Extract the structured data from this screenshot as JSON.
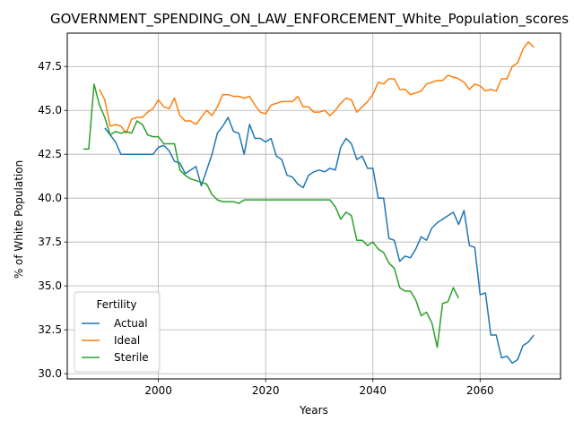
{
  "chart_data": {
    "type": "line",
    "title": "GOVERNMENT_SPENDING_ON_LAW_ENFORCEMENT_White_Population_scores",
    "xlabel": "Years",
    "ylabel": "% of White Population",
    "xlim": [
      1983,
      2075
    ],
    "ylim": [
      29.7,
      49.4
    ],
    "xticks": [
      2000,
      2020,
      2040,
      2060
    ],
    "yticks": [
      30.0,
      32.5,
      35.0,
      37.5,
      40.0,
      42.5,
      45.0,
      47.5
    ],
    "grid": true,
    "legend": {
      "title": "Fertility",
      "position": "lower-left"
    },
    "series": [
      {
        "name": "Actual",
        "color": "#1f77b4",
        "points": [
          [
            1990,
            44.0
          ],
          [
            1991,
            43.6
          ],
          [
            1992,
            43.2
          ],
          [
            1993,
            42.5
          ],
          [
            1994,
            42.5
          ],
          [
            1995,
            42.5
          ],
          [
            1996,
            42.5
          ],
          [
            1997,
            42.5
          ],
          [
            1998,
            42.5
          ],
          [
            1999,
            42.5
          ],
          [
            2000,
            42.9
          ],
          [
            2001,
            43.0
          ],
          [
            2002,
            42.7
          ],
          [
            2003,
            42.1
          ],
          [
            2004,
            42.0
          ],
          [
            2005,
            41.4
          ],
          [
            2006,
            41.6
          ],
          [
            2007,
            41.8
          ],
          [
            2008,
            40.7
          ],
          [
            2009,
            41.6
          ],
          [
            2010,
            42.5
          ],
          [
            2011,
            43.7
          ],
          [
            2012,
            44.1
          ],
          [
            2013,
            44.6
          ],
          [
            2014,
            43.8
          ],
          [
            2015,
            43.7
          ],
          [
            2016,
            42.5
          ],
          [
            2017,
            44.2
          ],
          [
            2018,
            43.4
          ],
          [
            2019,
            43.4
          ],
          [
            2020,
            43.2
          ],
          [
            2021,
            43.4
          ],
          [
            2022,
            42.4
          ],
          [
            2023,
            42.2
          ],
          [
            2024,
            41.3
          ],
          [
            2025,
            41.2
          ],
          [
            2026,
            40.8
          ],
          [
            2027,
            40.6
          ],
          [
            2028,
            41.3
          ],
          [
            2029,
            41.5
          ],
          [
            2030,
            41.6
          ],
          [
            2031,
            41.5
          ],
          [
            2032,
            41.7
          ],
          [
            2033,
            41.6
          ],
          [
            2034,
            42.9
          ],
          [
            2035,
            43.4
          ],
          [
            2036,
            43.1
          ],
          [
            2037,
            42.2
          ],
          [
            2038,
            42.4
          ],
          [
            2039,
            41.7
          ],
          [
            2040,
            41.7
          ],
          [
            2041,
            40.0
          ],
          [
            2042,
            40.0
          ],
          [
            2043,
            37.7
          ],
          [
            2044,
            37.6
          ],
          [
            2045,
            36.4
          ],
          [
            2046,
            36.7
          ],
          [
            2047,
            36.6
          ],
          [
            2048,
            37.1
          ],
          [
            2049,
            37.8
          ],
          [
            2050,
            37.6
          ],
          [
            2051,
            38.3
          ],
          [
            2052,
            38.6
          ],
          [
            2053,
            38.8
          ],
          [
            2054,
            39.0
          ],
          [
            2055,
            39.2
          ],
          [
            2056,
            38.5
          ],
          [
            2057,
            39.3
          ],
          [
            2058,
            37.3
          ],
          [
            2059,
            37.2
          ],
          [
            2060,
            34.5
          ],
          [
            2061,
            34.6
          ],
          [
            2062,
            32.2
          ],
          [
            2063,
            32.2
          ],
          [
            2064,
            30.9
          ],
          [
            2065,
            31.0
          ],
          [
            2066,
            30.6
          ],
          [
            2067,
            30.8
          ],
          [
            2068,
            31.6
          ],
          [
            2069,
            31.8
          ],
          [
            2070,
            32.2
          ]
        ]
      },
      {
        "name": "Ideal",
        "color": "#ff7f0e",
        "points": [
          [
            1989,
            46.2
          ],
          [
            1990,
            45.6
          ],
          [
            1991,
            44.1
          ],
          [
            1992,
            44.2
          ],
          [
            1993,
            44.1
          ],
          [
            1994,
            43.7
          ],
          [
            1995,
            44.5
          ],
          [
            1996,
            44.6
          ],
          [
            1997,
            44.6
          ],
          [
            1998,
            44.9
          ],
          [
            1999,
            45.1
          ],
          [
            2000,
            45.6
          ],
          [
            2001,
            45.2
          ],
          [
            2002,
            45.1
          ],
          [
            2003,
            45.7
          ],
          [
            2004,
            44.7
          ],
          [
            2005,
            44.4
          ],
          [
            2006,
            44.4
          ],
          [
            2007,
            44.2
          ],
          [
            2008,
            44.6
          ],
          [
            2009,
            45.0
          ],
          [
            2010,
            44.7
          ],
          [
            2011,
            45.2
          ],
          [
            2012,
            45.9
          ],
          [
            2013,
            45.9
          ],
          [
            2014,
            45.8
          ],
          [
            2015,
            45.8
          ],
          [
            2016,
            45.7
          ],
          [
            2017,
            45.8
          ],
          [
            2018,
            45.3
          ],
          [
            2019,
            44.9
          ],
          [
            2020,
            44.8
          ],
          [
            2021,
            45.3
          ],
          [
            2022,
            45.4
          ],
          [
            2023,
            45.5
          ],
          [
            2024,
            45.5
          ],
          [
            2025,
            45.5
          ],
          [
            2026,
            45.8
          ],
          [
            2027,
            45.2
          ],
          [
            2028,
            45.2
          ],
          [
            2029,
            44.9
          ],
          [
            2030,
            44.9
          ],
          [
            2031,
            45.0
          ],
          [
            2032,
            44.7
          ],
          [
            2033,
            45.0
          ],
          [
            2034,
            45.4
          ],
          [
            2035,
            45.7
          ],
          [
            2036,
            45.6
          ],
          [
            2037,
            44.9
          ],
          [
            2038,
            45.2
          ],
          [
            2039,
            45.5
          ],
          [
            2040,
            45.9
          ],
          [
            2041,
            46.6
          ],
          [
            2042,
            46.5
          ],
          [
            2043,
            46.8
          ],
          [
            2044,
            46.8
          ],
          [
            2045,
            46.2
          ],
          [
            2046,
            46.2
          ],
          [
            2047,
            45.9
          ],
          [
            2048,
            46.0
          ],
          [
            2049,
            46.1
          ],
          [
            2050,
            46.5
          ],
          [
            2051,
            46.6
          ],
          [
            2052,
            46.7
          ],
          [
            2053,
            46.7
          ],
          [
            2054,
            47.0
          ],
          [
            2055,
            46.9
          ],
          [
            2056,
            46.8
          ],
          [
            2057,
            46.6
          ],
          [
            2058,
            46.2
          ],
          [
            2059,
            46.5
          ],
          [
            2060,
            46.4
          ],
          [
            2061,
            46.1
          ],
          [
            2062,
            46.2
          ],
          [
            2063,
            46.1
          ],
          [
            2064,
            46.8
          ],
          [
            2065,
            46.8
          ],
          [
            2066,
            47.5
          ],
          [
            2067,
            47.7
          ],
          [
            2068,
            48.5
          ],
          [
            2069,
            48.9
          ],
          [
            2070,
            48.6
          ]
        ]
      },
      {
        "name": "Sterile",
        "color": "#2ca02c",
        "points": [
          [
            1986,
            42.8
          ],
          [
            1987,
            42.8
          ],
          [
            1988,
            46.5
          ],
          [
            1989,
            45.3
          ],
          [
            1990,
            44.6
          ],
          [
            1991,
            43.6
          ],
          [
            1992,
            43.8
          ],
          [
            1993,
            43.7
          ],
          [
            1994,
            43.8
          ],
          [
            1995,
            43.7
          ],
          [
            1996,
            44.4
          ],
          [
            1997,
            44.2
          ],
          [
            1998,
            43.6
          ],
          [
            1999,
            43.5
          ],
          [
            2000,
            43.5
          ],
          [
            2001,
            43.1
          ],
          [
            2002,
            43.1
          ],
          [
            2003,
            43.1
          ],
          [
            2004,
            41.6
          ],
          [
            2005,
            41.3
          ],
          [
            2006,
            41.1
          ],
          [
            2007,
            41.0
          ],
          [
            2008,
            40.9
          ],
          [
            2009,
            40.8
          ],
          [
            2010,
            40.2
          ],
          [
            2011,
            39.9
          ],
          [
            2012,
            39.8
          ],
          [
            2013,
            39.8
          ],
          [
            2014,
            39.8
          ],
          [
            2015,
            39.7
          ],
          [
            2016,
            39.9
          ],
          [
            2017,
            39.9
          ],
          [
            2018,
            39.9
          ],
          [
            2019,
            39.9
          ],
          [
            2020,
            39.9
          ],
          [
            2021,
            39.9
          ],
          [
            2022,
            39.9
          ],
          [
            2023,
            39.9
          ],
          [
            2024,
            39.9
          ],
          [
            2025,
            39.9
          ],
          [
            2026,
            39.9
          ],
          [
            2027,
            39.9
          ],
          [
            2028,
            39.9
          ],
          [
            2029,
            39.9
          ],
          [
            2030,
            39.9
          ],
          [
            2031,
            39.9
          ],
          [
            2032,
            39.9
          ],
          [
            2033,
            39.5
          ],
          [
            2034,
            38.8
          ],
          [
            2035,
            39.2
          ],
          [
            2036,
            39.0
          ],
          [
            2037,
            37.6
          ],
          [
            2038,
            37.6
          ],
          [
            2039,
            37.3
          ],
          [
            2040,
            37.5
          ],
          [
            2041,
            37.1
          ],
          [
            2042,
            36.9
          ],
          [
            2043,
            36.3
          ],
          [
            2044,
            36.0
          ],
          [
            2045,
            34.9
          ],
          [
            2046,
            34.7
          ],
          [
            2047,
            34.7
          ],
          [
            2048,
            34.2
          ],
          [
            2049,
            33.3
          ],
          [
            2050,
            33.5
          ],
          [
            2051,
            32.9
          ],
          [
            2052,
            31.5
          ],
          [
            2053,
            34.0
          ],
          [
            2054,
            34.1
          ],
          [
            2055,
            34.9
          ],
          [
            2056,
            34.3
          ]
        ]
      }
    ]
  }
}
